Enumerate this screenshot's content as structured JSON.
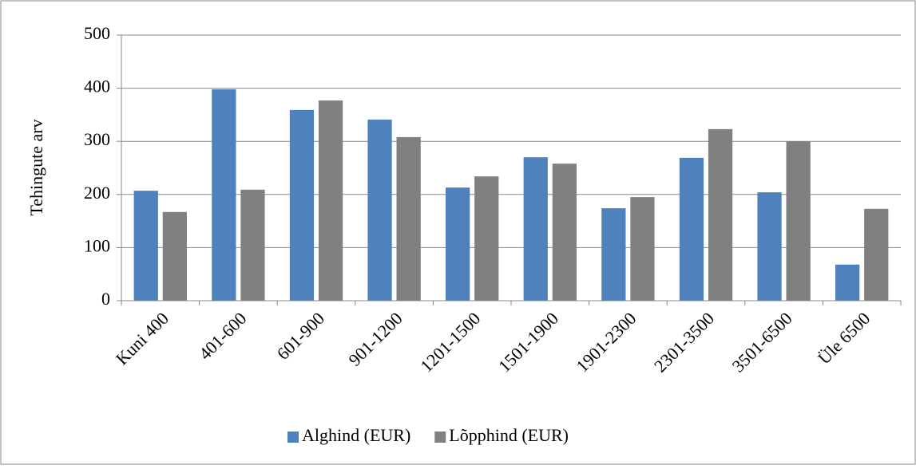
{
  "chart_data": {
    "type": "bar",
    "y_label": "Tehingute arv",
    "categories": [
      "Kuni 400",
      "401-600",
      "601-900",
      "901-1200",
      "1201-1500",
      "1501-1900",
      "1901-2300",
      "2301-3500",
      "3501-6500",
      "Üle 6500"
    ],
    "series": [
      {
        "name": "Alghind (EUR)",
        "color": "#4f81bd",
        "values": [
          207,
          398,
          359,
          341,
          213,
          270,
          174,
          269,
          204,
          68
        ]
      },
      {
        "name": "Lõpphind (EUR)",
        "color": "#808080",
        "values": [
          167,
          209,
          377,
          308,
          234,
          258,
          195,
          323,
          300,
          173
        ]
      }
    ],
    "ylim": [
      0,
      500
    ],
    "yticks": [
      0,
      100,
      200,
      300,
      400,
      500
    ],
    "grid": true,
    "legend": "bottom"
  }
}
